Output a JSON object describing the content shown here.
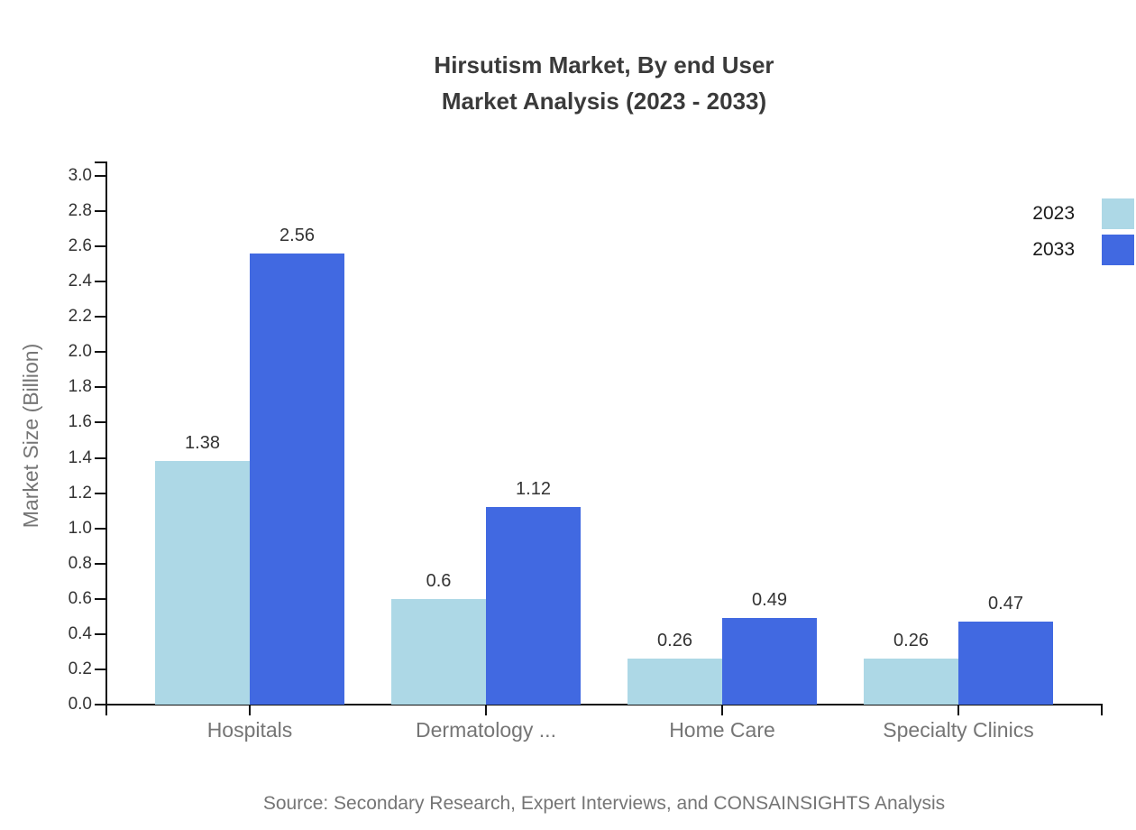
{
  "title": {
    "line1": "Hirsutism Market, By end User",
    "line2": "Market Analysis (2023 - 2033)"
  },
  "source": "Source: Secondary Research, Expert Interviews, and CONSAINSIGHTS Analysis",
  "colors": {
    "bar_2023": "#add8e6",
    "bar_2033": "#4169e1",
    "axis": "#111111",
    "tick_text": "#333333",
    "muted_text": "#757575",
    "title_text": "#3a3a3a"
  },
  "chart_data": {
    "type": "bar",
    "title": "Hirsutism Market, By end User Market Analysis (2023 - 2033)",
    "categories": [
      "Hospitals",
      "Dermatology ...",
      "Home Care",
      "Specialty Clinics"
    ],
    "series": [
      {
        "name": "2023",
        "color": "#add8e6",
        "values": [
          1.38,
          0.6,
          0.26,
          0.26
        ],
        "labels": [
          "1.38",
          "0.6",
          "0.26",
          "0.26"
        ]
      },
      {
        "name": "2033",
        "color": "#4169e1",
        "values": [
          2.56,
          1.12,
          0.49,
          0.47
        ],
        "labels": [
          "2.56",
          "1.12",
          "0.49",
          "0.47"
        ]
      }
    ],
    "xlabel": "",
    "ylabel": "Market Size (Billion)",
    "ylim": [
      0,
      3.0
    ],
    "ytick_step": 0.2,
    "ytick_labels": [
      "0.0",
      "0.2",
      "0.4",
      "0.6",
      "0.8",
      "1.0",
      "1.2",
      "1.4",
      "1.6",
      "1.8",
      "2.0",
      "2.2",
      "2.4",
      "2.6",
      "2.8",
      "3.0"
    ],
    "grid": false,
    "legend_position": "top-right",
    "value_labels_shown": true
  }
}
